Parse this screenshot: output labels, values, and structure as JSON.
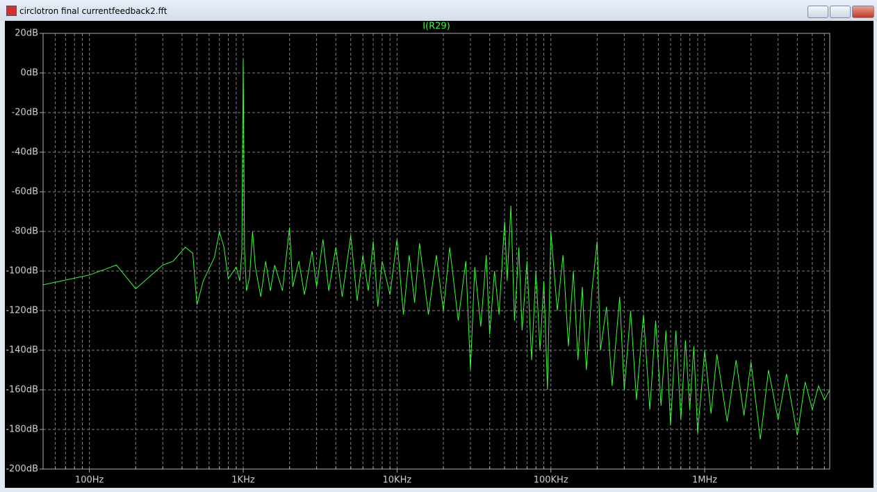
{
  "window": {
    "title": "circlotron final currentfeedback2.fft"
  },
  "chart_data": {
    "type": "line",
    "xscale": "log",
    "grid": true,
    "x": [
      50,
      100,
      150,
      200,
      300,
      350,
      420,
      470,
      500,
      550,
      650,
      700,
      750,
      800,
      900,
      950,
      980,
      1000,
      1020,
      1050,
      1100,
      1150,
      1200,
      1300,
      1400,
      1500,
      1600,
      1800,
      2000,
      2100,
      2300,
      2500,
      2800,
      3000,
      3300,
      3600,
      4000,
      4400,
      5000,
      5500,
      6000,
      6500,
      7000,
      7500,
      8000,
      9000,
      10000,
      11000,
      12000,
      13000,
      14000,
      16000,
      18000,
      20000,
      22000,
      25000,
      28000,
      30000,
      32000,
      35000,
      38000,
      40000,
      43000,
      46000,
      50000,
      52000,
      55000,
      58000,
      62000,
      65000,
      70000,
      75000,
      80000,
      85000,
      90000,
      95000,
      100000,
      110000,
      120000,
      130000,
      140000,
      150000,
      160000,
      170000,
      185000,
      200000,
      210000,
      230000,
      250000,
      280000,
      300000,
      330000,
      360000,
      400000,
      440000,
      480000,
      520000,
      560000,
      600000,
      650000,
      700000,
      750000,
      800000,
      850000,
      900000,
      1000000,
      1100000,
      1200000,
      1400000,
      1600000,
      1800000,
      2000000,
      2300000,
      2600000,
      3000000,
      3400000,
      4000000,
      4500000,
      5000000,
      5500000,
      6000000,
      6500000
    ],
    "series": [
      {
        "name": "I(R29)",
        "color": "#33ff33",
        "values": [
          -107,
          -102,
          -97,
          -109,
          -97,
          -95,
          -88,
          -91,
          -117,
          -105,
          -93,
          -80,
          -88,
          -104,
          -98,
          -105,
          -90,
          7,
          -90,
          -110,
          -103,
          -80,
          -98,
          -113,
          -95,
          -110,
          -97,
          -110,
          -78,
          -108,
          -95,
          -112,
          -90,
          -108,
          -84,
          -110,
          -88,
          -113,
          -82,
          -115,
          -92,
          -110,
          -85,
          -118,
          -95,
          -112,
          -84,
          -122,
          -92,
          -116,
          -86,
          -122,
          -92,
          -120,
          -88,
          -125,
          -95,
          -150,
          -98,
          -128,
          -92,
          -132,
          -100,
          -122,
          -75,
          -105,
          -67,
          -125,
          -88,
          -130,
          -95,
          -145,
          -100,
          -140,
          -105,
          -160,
          -80,
          -120,
          -92,
          -138,
          -100,
          -145,
          -108,
          -150,
          -110,
          -85,
          -140,
          -118,
          -158,
          -113,
          -160,
          -120,
          -165,
          -122,
          -170,
          -125,
          -168,
          -130,
          -178,
          -130,
          -175,
          -135,
          -170,
          -138,
          -182,
          -140,
          -172,
          -142,
          -176,
          -145,
          -173,
          -146,
          -185,
          -150,
          -175,
          -152,
          -183,
          -156,
          -170,
          -158,
          -165,
          -160
        ]
      }
    ],
    "xlim": [
      50,
      6500000
    ],
    "ylim": [
      -200,
      20
    ],
    "xticks": [
      {
        "value": 100,
        "label": "100Hz"
      },
      {
        "value": 1000,
        "label": "1KHz"
      },
      {
        "value": 10000,
        "label": "10KHz"
      },
      {
        "value": 100000,
        "label": "100KHz"
      },
      {
        "value": 1000000,
        "label": "1MHz"
      }
    ],
    "xminorticks": [
      60,
      70,
      80,
      90,
      200,
      300,
      400,
      500,
      600,
      700,
      800,
      900,
      2000,
      3000,
      4000,
      5000,
      6000,
      7000,
      8000,
      9000,
      20000,
      30000,
      40000,
      50000,
      60000,
      70000,
      80000,
      90000,
      200000,
      300000,
      400000,
      500000,
      600000,
      700000,
      800000,
      900000,
      2000000,
      3000000,
      4000000,
      5000000,
      6000000
    ],
    "yticks": [
      {
        "value": 20,
        "label": "20dB"
      },
      {
        "value": 0,
        "label": "0dB"
      },
      {
        "value": -20,
        "label": "-20dB"
      },
      {
        "value": -40,
        "label": "-40dB"
      },
      {
        "value": -60,
        "label": "-60dB"
      },
      {
        "value": -80,
        "label": "-80dB"
      },
      {
        "value": -100,
        "label": "-100dB"
      },
      {
        "value": -120,
        "label": "-120dB"
      },
      {
        "value": -140,
        "label": "-140dB"
      },
      {
        "value": -160,
        "label": "-160dB"
      },
      {
        "value": -180,
        "label": "-180dB"
      },
      {
        "value": -200,
        "label": "-200dB"
      }
    ]
  }
}
